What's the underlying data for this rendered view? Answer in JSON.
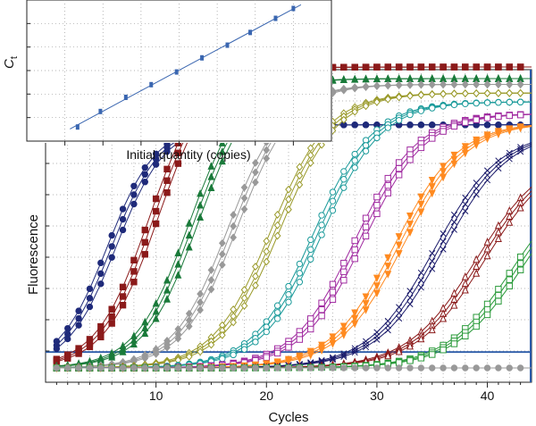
{
  "chart_data": [
    {
      "type": "line",
      "role": "amplification",
      "title": "",
      "xlabel": "Cycles",
      "ylabel": "Fluorescence",
      "xlim": [
        0,
        44
      ],
      "ylim": [
        0,
        1
      ],
      "x_ticks": [
        10,
        20,
        30,
        40
      ],
      "grid": true,
      "legend": "none",
      "threshold": 0.055,
      "cycles": [
        1,
        44
      ],
      "series": [
        {
          "color": "#1f2a7a",
          "marker": "circle",
          "filled": true,
          "midpoints": [
            5.6,
            6.0,
            6.4
          ],
          "plateau": 0.84,
          "slope": 2.2
        },
        {
          "color": "#8b1a1a",
          "marker": "square",
          "filled": true,
          "midpoints": [
            9.4,
            9.8,
            10.2
          ],
          "plateau": 1.04,
          "slope": 2.4
        },
        {
          "color": "#1a7a3a",
          "marker": "triangle",
          "filled": true,
          "midpoints": [
            13.0,
            13.4,
            13.8
          ],
          "plateau": 1.0,
          "slope": 2.4
        },
        {
          "color": "#999999",
          "marker": "diamond",
          "filled": true,
          "midpoints": [
            16.6,
            17.0,
            17.4
          ],
          "plateau": 0.98,
          "slope": 2.5
        },
        {
          "color": "#9a9a2a",
          "marker": "diamond",
          "filled": false,
          "midpoints": [
            20.4,
            20.8,
            21.2
          ],
          "plateau": 0.95,
          "slope": 2.6
        },
        {
          "color": "#1a9a9a",
          "marker": "circle",
          "filled": false,
          "midpoints": [
            24.2,
            24.6,
            25.0
          ],
          "plateau": 0.92,
          "slope": 2.7
        },
        {
          "color": "#a02aa0",
          "marker": "square",
          "filled": false,
          "midpoints": [
            28.0,
            28.4,
            28.8
          ],
          "plateau": 0.88,
          "slope": 2.8
        },
        {
          "color": "#ff8a20",
          "marker": "tri-down",
          "filled": true,
          "midpoints": [
            31.6,
            32.0,
            32.4
          ],
          "plateau": 0.85,
          "slope": 2.9
        },
        {
          "color": "#1a1a6a",
          "marker": "cross",
          "filled": false,
          "midpoints": [
            35.2,
            35.6,
            36.0
          ],
          "plateau": 0.82,
          "slope": 3.0
        },
        {
          "color": "#8b1a1a",
          "marker": "triangle",
          "filled": false,
          "midpoints": [
            39.0,
            39.4,
            39.8
          ],
          "plateau": 0.75,
          "slope": 3.1
        },
        {
          "color": "#2a9a3a",
          "marker": "square",
          "filled": false,
          "midpoints": [
            42.4,
            42.8,
            43.2
          ],
          "plateau": 0.7,
          "slope": 3.1
        },
        {
          "color": "#999999",
          "marker": "circle",
          "filled": true,
          "midpoints": [],
          "plateau": 0.0,
          "slope": 3.0
        }
      ]
    },
    {
      "type": "scatter",
      "role": "standard-curve-inset",
      "title": "",
      "xlabel": "Initial quantity (copies)",
      "ylabel": "C",
      "ylabel_subscript": "t",
      "xscale": "log",
      "xlim": [
        0,
        12
      ],
      "ylim": [
        0,
        10
      ],
      "grid": true,
      "legend": "none",
      "color": "#3a66b0",
      "x": [
        10.5,
        9.8,
        8.8,
        7.9,
        6.9,
        5.9,
        4.9,
        3.9,
        2.9,
        2.0
      ],
      "y": [
        9.4,
        8.7,
        7.7,
        6.8,
        5.9,
        4.9,
        4.0,
        3.1,
        2.1,
        1.0
      ]
    }
  ]
}
